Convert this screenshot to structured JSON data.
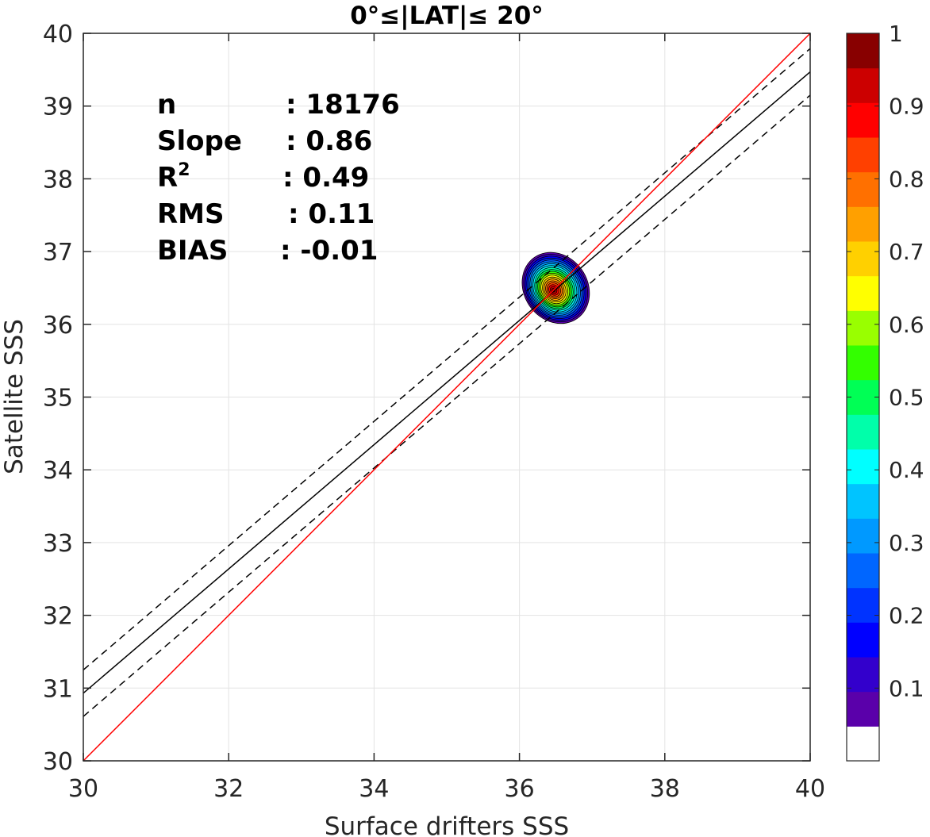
{
  "chart_data": {
    "type": "scatter",
    "title": "0°≤|LAT|≤ 20°",
    "xlabel": "Surface drifters SSS",
    "ylabel": "Satellite SSS",
    "xlim": [
      30,
      40
    ],
    "ylim": [
      30,
      40
    ],
    "xticks": [
      "30",
      "32",
      "34",
      "36",
      "38",
      "40"
    ],
    "yticks": [
      "30",
      "31",
      "32",
      "33",
      "34",
      "35",
      "36",
      "37",
      "38",
      "39",
      "40"
    ],
    "grid": true,
    "stats": [
      {
        "label": "n",
        "value": ": 18176"
      },
      {
        "label": "Slope",
        "value": ": 0.86"
      },
      {
        "label": "R",
        "sup": "2",
        "value": ": 0.49"
      },
      {
        "label": "RMS",
        "value": ": 0.11"
      },
      {
        "label": "BIAS",
        "value": ": -0.01"
      }
    ],
    "lines": {
      "one_to_one": {
        "x": [
          30,
          40
        ],
        "y": [
          30,
          40
        ],
        "color": "#ff0000"
      },
      "fit": {
        "x": [
          30,
          40
        ],
        "y": [
          30.93,
          39.47
        ],
        "color": "#000000"
      },
      "fit_upper": {
        "x": [
          30,
          40
        ],
        "y": [
          31.25,
          39.79
        ],
        "color": "#000000",
        "dash": true
      },
      "fit_lower": {
        "x": [
          30,
          40
        ],
        "y": [
          30.61,
          39.15
        ],
        "color": "#000000",
        "dash": true
      }
    },
    "density_peak": {
      "x": 36.5,
      "y": 36.5,
      "max": 1.0
    },
    "colorbar": {
      "ticks": [
        "0.1",
        "0.2",
        "0.3",
        "0.4",
        "0.5",
        "0.6",
        "0.7",
        "0.8",
        "0.9",
        "1"
      ],
      "range": [
        0,
        1
      ],
      "colors": [
        "#ffffff",
        "#5a00aa",
        "#3300cc",
        "#0000ff",
        "#0033ff",
        "#0066ff",
        "#0099ff",
        "#00c4ff",
        "#00ffff",
        "#00ffaa",
        "#00ff55",
        "#33ff00",
        "#99ff00",
        "#ffff00",
        "#ffd000",
        "#ffa000",
        "#ff7000",
        "#ff4000",
        "#ff0000",
        "#cc0000",
        "#880000"
      ]
    }
  }
}
